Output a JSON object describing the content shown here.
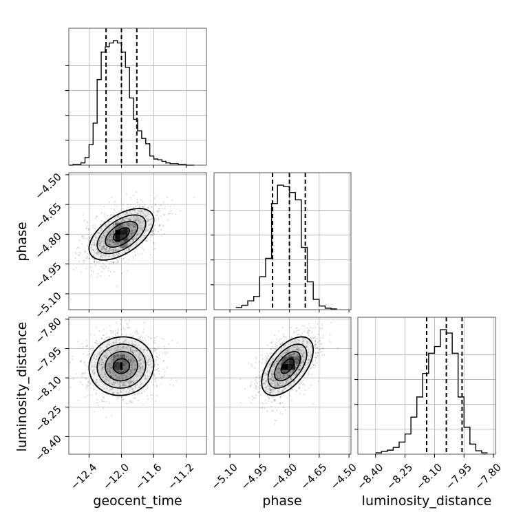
{
  "chart_data": {
    "type": "corner",
    "parameters": [
      "geocent_time",
      "phase",
      "luminosity_distance"
    ],
    "axes": {
      "geocent_time": {
        "range": [
          -12.65,
          -10.95
        ],
        "ticks": [
          -12.4,
          -12.0,
          -11.6,
          -11.2
        ],
        "tick_labels": [
          "−12.4",
          "−12.0",
          "−11.6",
          "−11.2"
        ]
      },
      "phase": {
        "range": [
          -5.18,
          -4.49
        ],
        "ticks": [
          -5.1,
          -4.95,
          -4.8,
          -4.65,
          -4.5
        ],
        "tick_labels": [
          "−5.10",
          "−4.95",
          "−4.80",
          "−4.65",
          "−4.50"
        ]
      },
      "luminosity_distance": {
        "range": [
          -8.49,
          -7.79
        ],
        "ticks": [
          -8.4,
          -8.25,
          -8.1,
          -7.95,
          -7.8
        ],
        "tick_labels": [
          "−8.40",
          "−8.25",
          "−8.10",
          "−7.95",
          "−7.80"
        ]
      }
    },
    "diagonal": [
      {
        "parameter": "geocent_time",
        "quantiles": [
          -12.19,
          -12.0,
          -11.81
        ],
        "bin_edges": [
          -12.65,
          -12.6,
          -12.55,
          -12.5,
          -12.45,
          -12.4,
          -12.35,
          -12.3,
          -12.25,
          -12.2,
          -12.15,
          -12.1,
          -12.05,
          -12.0,
          -11.95,
          -11.9,
          -11.85,
          -11.8,
          -11.75,
          -11.7,
          -11.65,
          -11.6,
          -11.55,
          -11.5,
          -11.45,
          -11.4,
          -11.35,
          -11.3,
          -11.25,
          -11.2,
          -11.15,
          -11.1
        ],
        "counts": [
          0,
          1,
          1,
          3,
          10,
          27,
          55,
          112,
          148,
          155,
          160,
          163,
          160,
          148,
          128,
          88,
          60,
          45,
          35,
          28,
          12,
          8,
          7,
          5,
          3,
          2,
          2,
          1,
          1,
          0,
          0
        ]
      },
      {
        "parameter": "phase",
        "quantiles": [
          -4.885,
          -4.8,
          -4.72
        ],
        "bin_edges": [
          -5.07,
          -5.04,
          -5.01,
          -4.98,
          -4.95,
          -4.92,
          -4.89,
          -4.86,
          -4.83,
          -4.8,
          -4.77,
          -4.74,
          -4.71,
          -4.68,
          -4.65,
          -4.62,
          -4.59,
          -4.56
        ],
        "counts": [
          3,
          6,
          12,
          18,
          45,
          70,
          145,
          170,
          168,
          160,
          150,
          85,
          38,
          14,
          5,
          2,
          1
        ]
      },
      {
        "parameter": "luminosity_distance",
        "quantiles": [
          -8.14,
          -8.04,
          -7.96
        ],
        "bin_edges": [
          -8.4,
          -8.37,
          -8.34,
          -8.31,
          -8.28,
          -8.25,
          -8.22,
          -8.19,
          -8.16,
          -8.13,
          -8.1,
          -8.07,
          -8.04,
          -8.01,
          -7.98,
          -7.95,
          -7.92,
          -7.89,
          -7.86,
          -7.83
        ],
        "counts": [
          2,
          4,
          6,
          10,
          18,
          30,
          55,
          85,
          120,
          150,
          160,
          185,
          180,
          150,
          85,
          40,
          15,
          5,
          2
        ]
      }
    ],
    "pairs": [
      {
        "x": "geocent_time",
        "y": "phase",
        "center": [
          -12.0,
          -4.8
        ],
        "sigma": [
          0.2,
          0.065
        ],
        "correlation": 0.55,
        "contour_levels_sigma": [
          0.5,
          1.0,
          1.5,
          2.0
        ],
        "density_cells": [
          [
            -12.03,
            -4.79,
            1.0
          ],
          [
            -12.03,
            -4.82,
            0.92
          ],
          [
            -11.97,
            -4.79,
            0.88
          ],
          [
            -11.97,
            -4.82,
            0.75
          ],
          [
            -12.03,
            -4.76,
            0.55
          ],
          [
            -11.97,
            -4.85,
            0.5
          ]
        ]
      },
      {
        "x": "geocent_time",
        "y": "luminosity_distance",
        "center": [
          -12.0,
          -8.04
        ],
        "sigma": [
          0.2,
          0.075
        ],
        "correlation": 0.05,
        "contour_levels_sigma": [
          0.5,
          1.0,
          1.5,
          2.0
        ],
        "density_cells": [
          [
            -12.0,
            -8.04,
            1.0
          ],
          [
            -12.06,
            -8.04,
            0.75
          ],
          [
            -12.0,
            -8.0,
            0.6
          ],
          [
            -11.94,
            -8.04,
            0.55
          ],
          [
            -12.06,
            -8.0,
            0.5
          ]
        ]
      },
      {
        "x": "phase",
        "y": "luminosity_distance",
        "center": [
          -4.81,
          -8.04
        ],
        "sigma": [
          0.065,
          0.075
        ],
        "correlation": 0.55,
        "contour_levels_sigma": [
          0.5,
          1.0,
          1.5,
          2.0
        ],
        "density_cells": [
          [
            -4.82,
            -8.04,
            1.0
          ],
          [
            -4.79,
            -8.04,
            0.85
          ],
          [
            -4.79,
            -8.01,
            0.8
          ],
          [
            -4.82,
            -8.01,
            0.6
          ],
          [
            -4.76,
            -8.01,
            0.55
          ]
        ]
      }
    ],
    "grid": true,
    "colors": {
      "line": "#000000",
      "grid": "#b0b0b0",
      "scatter": "#000000"
    }
  }
}
